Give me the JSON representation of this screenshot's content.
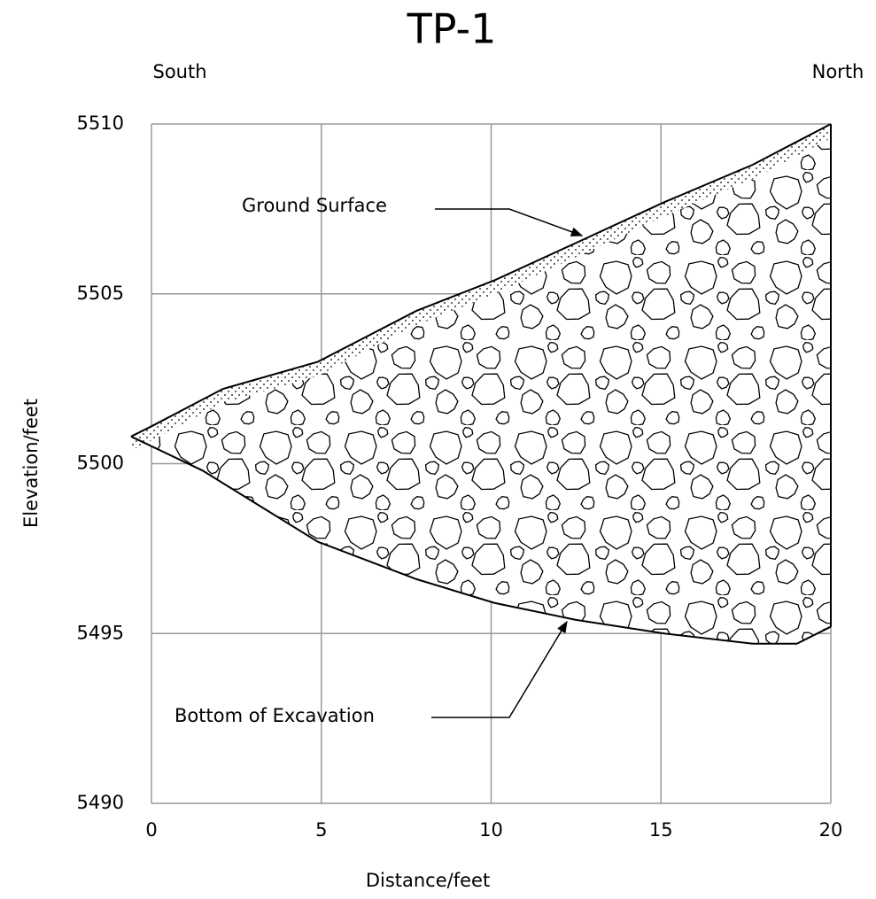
{
  "chart_data": {
    "type": "section",
    "title": "TP-1",
    "annotations": {
      "left": "South",
      "right": "North"
    },
    "x_label": "Distance/feet",
    "y_label": "Elevation/feet",
    "xlim": [
      0,
      20
    ],
    "ylim": [
      5490,
      5510
    ],
    "xticks": [
      0,
      5,
      10,
      15,
      20
    ],
    "yticks": [
      5490,
      5495,
      5500,
      5505,
      5510
    ],
    "grid": true,
    "series": [
      {
        "name": "Ground Surface",
        "color": "#000000",
        "x": [
          -0.6,
          0,
          2.1,
          4.9,
          7.8,
          10.1,
          12.5,
          15.1,
          17.7,
          20
        ],
        "values": [
          5500.8,
          5501.1,
          5502.2,
          5503.0,
          5504.5,
          5505.4,
          5506.5,
          5507.7,
          5508.8,
          5510
        ]
      },
      {
        "name": "Bottom of Excavation",
        "color": "#000000",
        "x": [
          -0.6,
          1.5,
          4.9,
          7.8,
          10.1,
          12.5,
          15.1,
          17.7,
          19,
          20
        ],
        "values": [
          5500.8,
          5499.8,
          5497.7,
          5496.6,
          5495.9,
          5495.4,
          5495.0,
          5494.7,
          5494.7,
          5495.2
        ]
      }
    ]
  }
}
